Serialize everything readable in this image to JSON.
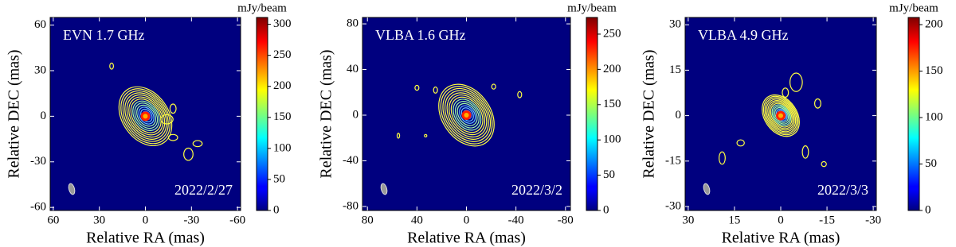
{
  "chart_data": [
    {
      "type": "image",
      "title": "EVN 1.7 GHz",
      "annotation": "2022/2/27",
      "x_label": "Relative RA (mas)",
      "y_label": "Relative DEC (mas)",
      "xlim": [
        62,
        -62
      ],
      "xticks": [
        60,
        30,
        0,
        -30,
        -60
      ],
      "ylim": [
        -62,
        65
      ],
      "yticks": [
        -60,
        -30,
        0,
        30,
        60
      ],
      "cmap": "jet",
      "colorbar": {
        "label": "mJy/beam",
        "lim": [
          0,
          311
        ],
        "ticks": [
          0,
          50,
          100,
          150,
          200,
          250,
          300
        ]
      }
    },
    {
      "type": "image",
      "title": "VLBA 1.6 GHz",
      "annotation": "2022/3/2",
      "x_label": "Relative RA (mas)",
      "y_label": "Relative DEC (mas)",
      "xlim": [
        84,
        -84
      ],
      "xticks": [
        80,
        40,
        0,
        -40,
        -80
      ],
      "ylim": [
        -83.5,
        85.6
      ],
      "yticks": [
        -80,
        -40,
        0,
        40,
        80
      ],
      "cmap": "jet",
      "colorbar": {
        "label": "mJy/beam",
        "lim": [
          0,
          273.6
        ],
        "ticks": [
          0,
          50,
          100,
          150,
          200,
          250
        ]
      }
    },
    {
      "type": "image",
      "title": "VLBA 4.9 GHz",
      "annotation": "2022/3/3",
      "x_label": "Relative RA (mas)",
      "y_label": "Relative DEC (mas)",
      "xlim": [
        31,
        -31
      ],
      "xticks": [
        30,
        15,
        0,
        -15,
        -30
      ],
      "ylim": [
        -31.3,
        32.4
      ],
      "yticks": [
        -30,
        -15,
        0,
        15,
        30
      ],
      "cmap": "jet",
      "colorbar": {
        "label": "mJy/beam",
        "lim": [
          0,
          207.7
        ],
        "ticks": [
          0,
          50,
          100,
          150,
          200
        ]
      }
    }
  ]
}
